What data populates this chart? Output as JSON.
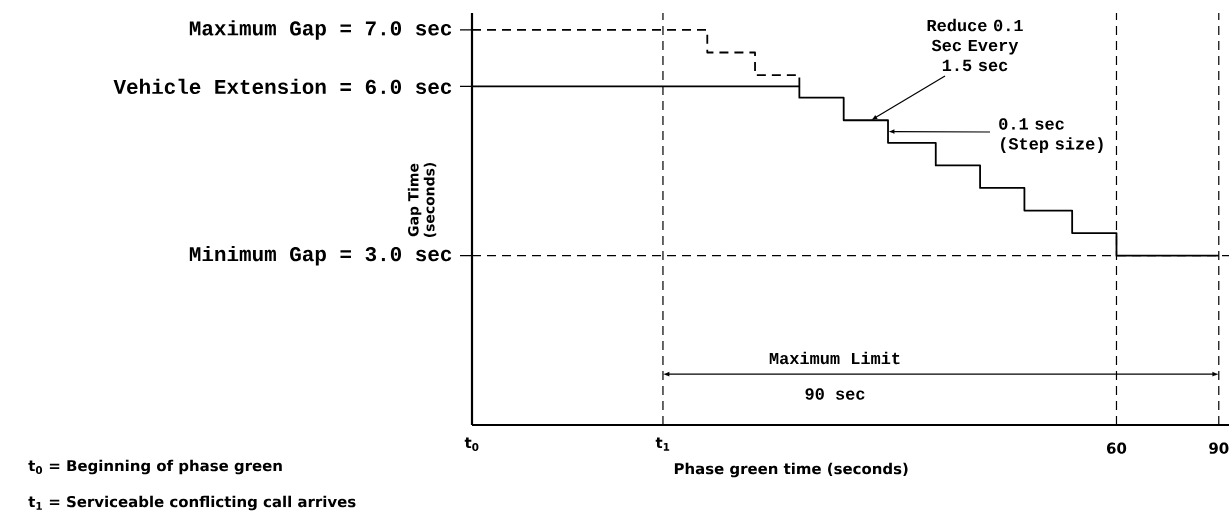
{
  "chart_data": {
    "type": "step",
    "xlabel": "Phase green time (seconds)",
    "ylabel": "Gap Time (seconds)",
    "xlim": [
      -129,
      93
    ],
    "ylim": [
      0,
      7.3
    ],
    "xticks": [
      60,
      90
    ],
    "yticks": [
      {
        "value": 7,
        "label": "Maximum Gap = 7.0 sec"
      },
      {
        "value": 6,
        "label": "Vehicle Extension = 6.0 sec"
      },
      {
        "value": 3,
        "label": "Minimum Gap = 3.0 sec"
      }
    ],
    "series": [
      {
        "color": "#000000",
        "line_style": "solid",
        "x": [
          -129,
          -33,
          -20,
          -7,
          7,
          20,
          33,
          47,
          60,
          90
        ],
        "values": [
          6.0,
          5.8,
          5.4,
          5.0,
          4.6,
          4.2,
          3.8,
          3.4,
          3.0,
          3.0
        ]
      },
      {
        "color": "#000000",
        "line_style": "dashed",
        "x": [
          -129,
          -60,
          -46,
          -33
        ],
        "values": [
          7.0,
          6.6,
          6.2,
          6.0
        ]
      }
    ],
    "ref_lines": [
      {
        "axis": "x",
        "value": -73,
        "color": "#000000",
        "line_style": "dashed"
      },
      {
        "axis": "x",
        "value": 60,
        "color": "#000000",
        "line_style": "dashed"
      },
      {
        "axis": "x",
        "value": 90,
        "color": "#000000",
        "line_style": "dashed"
      },
      {
        "axis": "y",
        "value": 3,
        "color": "#000000",
        "line_style": "dashed"
      }
    ],
    "annotations": [
      {
        "text": "Reduce 0.1 Sec Every 1.5 sec",
        "x": -12,
        "y": 5.4
      },
      {
        "text": "0.1 sec (Step size)",
        "x": -7,
        "y": 5.2
      },
      "Maximum Limit",
      "90 sec",
      "t$_{0}$ =   Beginning of phase green",
      "t$_{1}$ =   Serviceable conflicting call arrives",
      "t$_{0}$",
      "t$_{1}$"
    ]
  }
}
